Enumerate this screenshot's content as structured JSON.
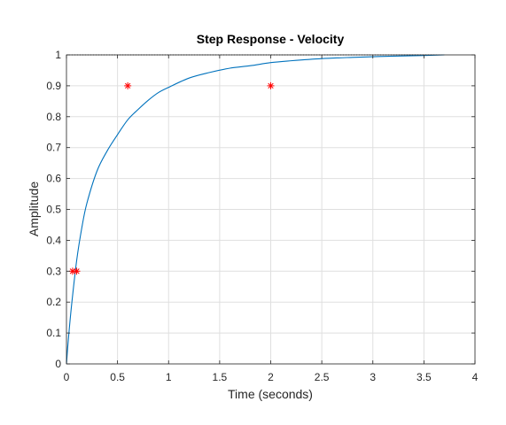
{
  "chart_data": {
    "type": "line",
    "title": "Step Response - Velocity",
    "xlabel": "Time (seconds)",
    "ylabel": "Amplitude",
    "xlim": [
      0,
      4
    ],
    "ylim": [
      0,
      1
    ],
    "grid": true,
    "xticks": [
      "0",
      "0.5",
      "1",
      "1.5",
      "2",
      "2.5",
      "3",
      "3.5",
      "4"
    ],
    "yticks": [
      "0",
      "0.1",
      "0.2",
      "0.3",
      "0.4",
      "0.5",
      "0.6",
      "0.7",
      "0.8",
      "0.9",
      "1"
    ],
    "series": [
      {
        "kind": "line",
        "color": "#0072bd",
        "x": [
          0,
          0.02,
          0.05,
          0.1,
          0.15,
          0.2,
          0.3,
          0.4,
          0.5,
          0.6,
          0.7,
          0.8,
          0.9,
          1.0,
          1.2,
          1.4,
          1.6,
          1.8,
          2.0,
          2.2,
          2.5,
          2.8,
          3.0,
          3.2,
          3.5,
          3.7
        ],
        "y": [
          0,
          0.085,
          0.19,
          0.335,
          0.44,
          0.52,
          0.625,
          0.69,
          0.742,
          0.79,
          0.823,
          0.853,
          0.878,
          0.895,
          0.925,
          0.943,
          0.957,
          0.965,
          0.975,
          0.981,
          0.988,
          0.992,
          0.994,
          0.996,
          0.998,
          1.0
        ]
      },
      {
        "kind": "markers",
        "marker": "asterisk",
        "color": "#ff0000",
        "x": [
          0.06,
          0.1,
          0.6,
          2.0
        ],
        "y": [
          0.3,
          0.3,
          0.9,
          0.9
        ]
      }
    ],
    "reference_line": {
      "y": 1,
      "color": "#000000",
      "style": "dotted",
      "x_end": 3.7
    }
  }
}
